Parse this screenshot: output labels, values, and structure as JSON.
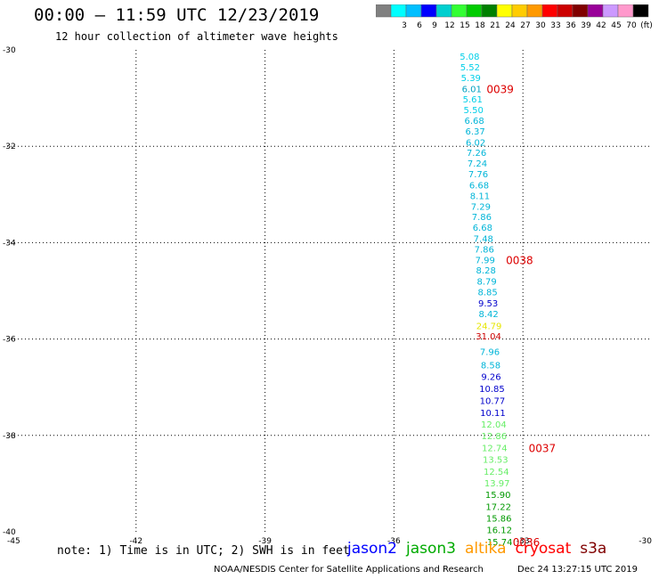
{
  "header": {
    "title": "00:00 – 11:59 UTC 12/23/2019",
    "subtitle": "12 hour collection of altimeter wave heights"
  },
  "colorbar": {
    "bins": [
      {
        "label": "",
        "color": "#808080"
      },
      {
        "label": "3",
        "color": "#00ffff"
      },
      {
        "label": "6",
        "color": "#00bfff"
      },
      {
        "label": "9",
        "color": "#0000ff"
      },
      {
        "label": "12",
        "color": "#00cfcf"
      },
      {
        "label": "15",
        "color": "#33ff33"
      },
      {
        "label": "18",
        "color": "#00cc00"
      },
      {
        "label": "21",
        "color": "#008000"
      },
      {
        "label": "24",
        "color": "#ffff00"
      },
      {
        "label": "27",
        "color": "#ffcc00"
      },
      {
        "label": "30",
        "color": "#ff9900"
      },
      {
        "label": "33",
        "color": "#ff0000"
      },
      {
        "label": "36",
        "color": "#cc0000"
      },
      {
        "label": "39",
        "color": "#800000"
      },
      {
        "label": "42",
        "color": "#990099"
      },
      {
        "label": "45",
        "color": "#cc99ff"
      },
      {
        "label": "70",
        "color": "#ff99cc"
      },
      {
        "label": "(ft)",
        "color": "#000000"
      }
    ]
  },
  "missions": [
    {
      "name": "jason2",
      "color": "#0000ff"
    },
    {
      "name": "jason3",
      "color": "#00aa00"
    },
    {
      "name": "altika",
      "color": "#ff9900"
    },
    {
      "name": "cryosat",
      "color": "#ff0000"
    },
    {
      "name": "s3a",
      "color": "#800000"
    }
  ],
  "footer": {
    "note": "note: 1) Time is in UTC; 2) SWH is in feet",
    "credit": "NOAA/NESDIS Center for Satellite Applications and Research",
    "timestamp": "Dec 24 13:27:15 UTC 2019"
  },
  "chart_data": {
    "type": "scatter",
    "title": "",
    "xlabel": "",
    "ylabel": "",
    "xlim": [
      -45,
      -30
    ],
    "ylim": [
      -40,
      -30
    ],
    "grid": true,
    "x_ticks": [
      "-45",
      "-42",
      "-39",
      "-36",
      "-33",
      "-30"
    ],
    "y_ticks": [
      "-30",
      "-32",
      "-34",
      "-36",
      "-38",
      "-40"
    ],
    "points": [
      {
        "lat": -30.13,
        "lon": -34.24,
        "value": "5.08",
        "color": "#00cfe8"
      },
      {
        "lat": -30.35,
        "lon": -34.23,
        "value": "5.52",
        "color": "#00cfe8"
      },
      {
        "lat": -30.57,
        "lon": -34.21,
        "value": "5.39",
        "color": "#00cfe8"
      },
      {
        "lat": -30.8,
        "lon": -34.19,
        "value": "6.01",
        "color": "#00a0c0"
      },
      {
        "lat": -31.02,
        "lon": -34.17,
        "value": "5.61",
        "color": "#00cfe8"
      },
      {
        "lat": -31.24,
        "lon": -34.15,
        "value": "5.50",
        "color": "#00cfe8"
      },
      {
        "lat": -31.46,
        "lon": -34.13,
        "value": "6.68",
        "color": "#00b5d8"
      },
      {
        "lat": -31.68,
        "lon": -34.11,
        "value": "6.37",
        "color": "#00b5d8"
      },
      {
        "lat": -31.91,
        "lon": -34.1,
        "value": "6.02",
        "color": "#00b5d8"
      },
      {
        "lat": -32.13,
        "lon": -34.08,
        "value": "7.26",
        "color": "#00b5d8"
      },
      {
        "lat": -32.35,
        "lon": -34.06,
        "value": "7.24",
        "color": "#00b5d8"
      },
      {
        "lat": -32.57,
        "lon": -34.04,
        "value": "7.76",
        "color": "#00b5d8"
      },
      {
        "lat": -32.8,
        "lon": -34.02,
        "value": "6.68",
        "color": "#00b5d8"
      },
      {
        "lat": -33.02,
        "lon": -34.0,
        "value": "8.11",
        "color": "#00b5d8"
      },
      {
        "lat": -33.24,
        "lon": -33.98,
        "value": "7.29",
        "color": "#00b5d8"
      },
      {
        "lat": -33.46,
        "lon": -33.96,
        "value": "7.86",
        "color": "#00b5d8"
      },
      {
        "lat": -33.68,
        "lon": -33.94,
        "value": "6.68",
        "color": "#00b5d8"
      },
      {
        "lat": -33.91,
        "lon": -33.92,
        "value": "7.48",
        "color": "#00b5d8"
      },
      {
        "lat": -34.13,
        "lon": -33.9,
        "value": "7.86",
        "color": "#00b5d8"
      },
      {
        "lat": -34.35,
        "lon": -33.88,
        "value": "7.99",
        "color": "#00b5d8"
      },
      {
        "lat": -34.57,
        "lon": -33.86,
        "value": "8.28",
        "color": "#00b5d8"
      },
      {
        "lat": -34.8,
        "lon": -33.84,
        "value": "8.79",
        "color": "#00b5d8"
      },
      {
        "lat": -35.02,
        "lon": -33.82,
        "value": "8.85",
        "color": "#00b5d8"
      },
      {
        "lat": -35.25,
        "lon": -33.81,
        "value": "9.53",
        "color": "#0000cc"
      },
      {
        "lat": -35.47,
        "lon": -33.8,
        "value": "8.42",
        "color": "#00b5d8"
      },
      {
        "lat": -35.72,
        "lon": -33.79,
        "value": "24.79",
        "color": "#e6e600"
      },
      {
        "lat": -35.93,
        "lon": -33.8,
        "value": "31.04",
        "color": "#cc0000"
      },
      {
        "lat": -36.26,
        "lon": -33.77,
        "value": "7.96",
        "color": "#00b5d8"
      },
      {
        "lat": -36.53,
        "lon": -33.75,
        "value": "8.58",
        "color": "#00b5d8"
      },
      {
        "lat": -36.77,
        "lon": -33.74,
        "value": "9.26",
        "color": "#0000cc"
      },
      {
        "lat": -37.02,
        "lon": -33.72,
        "value": "10.85",
        "color": "#0000cc"
      },
      {
        "lat": -37.27,
        "lon": -33.71,
        "value": "10.77",
        "color": "#0000cc"
      },
      {
        "lat": -37.52,
        "lon": -33.7,
        "value": "10.11",
        "color": "#0000cc"
      },
      {
        "lat": -37.76,
        "lon": -33.68,
        "value": "12.04",
        "color": "#66ee66"
      },
      {
        "lat": -38.0,
        "lon": -33.67,
        "value": "12.86",
        "color": "#66ee66"
      },
      {
        "lat": -38.25,
        "lon": -33.66,
        "value": "12.74",
        "color": "#66ee66"
      },
      {
        "lat": -38.49,
        "lon": -33.64,
        "value": "13.53",
        "color": "#66ee66"
      },
      {
        "lat": -38.74,
        "lon": -33.62,
        "value": "12.54",
        "color": "#66ee66"
      },
      {
        "lat": -38.98,
        "lon": -33.6,
        "value": "13.97",
        "color": "#66ee66"
      },
      {
        "lat": -39.22,
        "lon": -33.58,
        "value": "15.90",
        "color": "#009900"
      },
      {
        "lat": -39.47,
        "lon": -33.57,
        "value": "17.22",
        "color": "#009900"
      },
      {
        "lat": -39.71,
        "lon": -33.56,
        "value": "15.86",
        "color": "#009900"
      },
      {
        "lat": -39.95,
        "lon": -33.55,
        "value": "16.12",
        "color": "#009900"
      },
      {
        "lat": -40.2,
        "lon": -33.54,
        "value": "15.74",
        "color": "#009900"
      }
    ],
    "time_labels": [
      {
        "lat": -30.8,
        "lon": -33.53,
        "text": "0039"
      },
      {
        "lat": -34.35,
        "lon": -33.08,
        "text": "0038"
      },
      {
        "lat": -38.25,
        "lon": -32.55,
        "text": "0037"
      },
      {
        "lat": -40.2,
        "lon": -32.92,
        "text": "0036"
      }
    ]
  }
}
